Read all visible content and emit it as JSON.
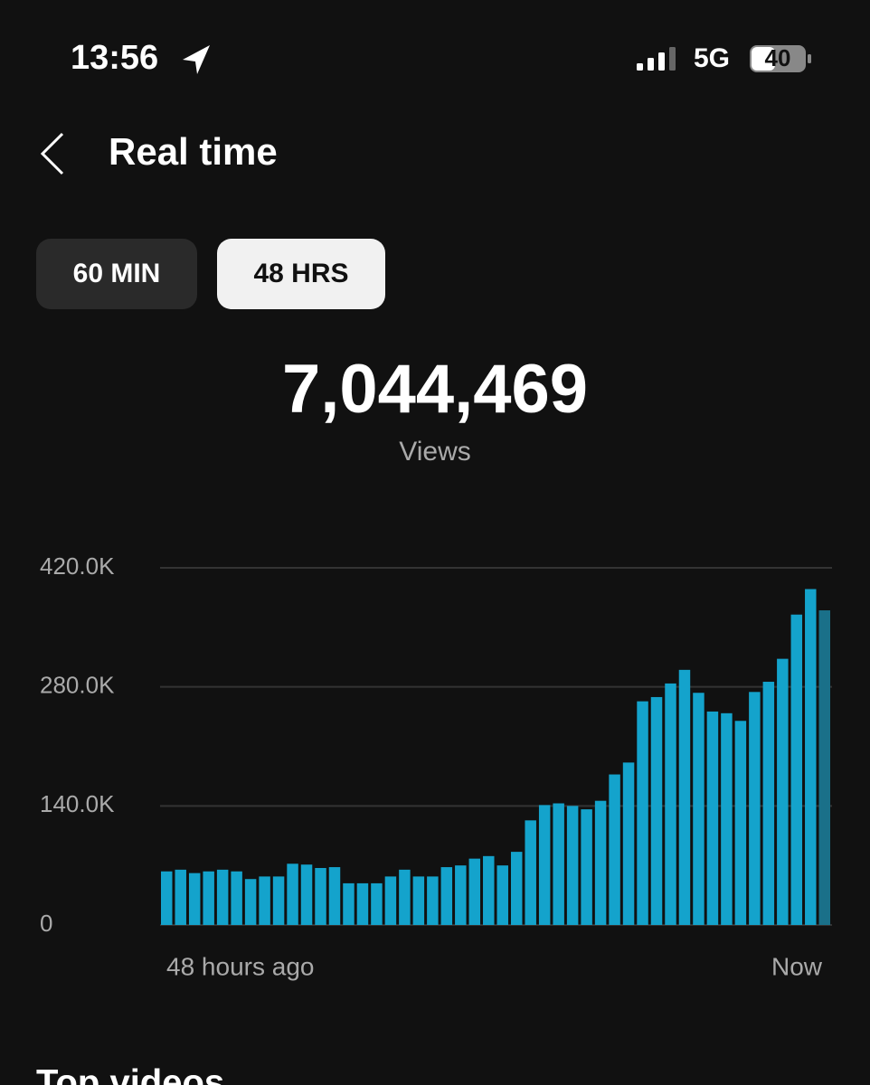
{
  "status_bar": {
    "time": "13:56",
    "network": "5G",
    "battery": "40"
  },
  "header": {
    "title": "Real time"
  },
  "tabs": [
    "60 MIN",
    "48 HRS"
  ],
  "summary": {
    "value": "7,044,469",
    "label": "Views"
  },
  "chart_data": {
    "type": "bar",
    "categories": [
      "48 hours ago",
      null,
      null,
      null,
      null,
      null,
      null,
      null,
      null,
      null,
      null,
      null,
      null,
      null,
      null,
      null,
      null,
      null,
      null,
      null,
      null,
      null,
      null,
      null,
      null,
      null,
      null,
      null,
      null,
      null,
      null,
      null,
      null,
      null,
      null,
      null,
      null,
      null,
      null,
      null,
      null,
      null,
      null,
      null,
      null,
      null,
      null,
      "Now"
    ],
    "values": [
      63000,
      65000,
      61000,
      63000,
      65000,
      63000,
      54000,
      57000,
      57000,
      72000,
      71000,
      67000,
      68000,
      49000,
      49000,
      49000,
      57000,
      65000,
      57000,
      57000,
      68000,
      70000,
      78000,
      81000,
      70000,
      86000,
      123000,
      141000,
      143000,
      140000,
      136000,
      146000,
      177000,
      191000,
      263000,
      268000,
      284000,
      300000,
      273000,
      251000,
      249000,
      240000,
      274000,
      286000,
      313000,
      365000,
      395000,
      370000
    ],
    "color": "#14a3cc",
    "current_color": "#1a7089",
    "ylim": [
      0,
      420000
    ],
    "yticks": [
      0,
      {
        "value": 140000,
        "label": "140.0K"
      },
      {
        "value": 280000,
        "label": "280.0K"
      },
      {
        "value": 420000,
        "label": "420.0K"
      }
    ],
    "grid": true
  },
  "section": {
    "title": "Top videos"
  }
}
